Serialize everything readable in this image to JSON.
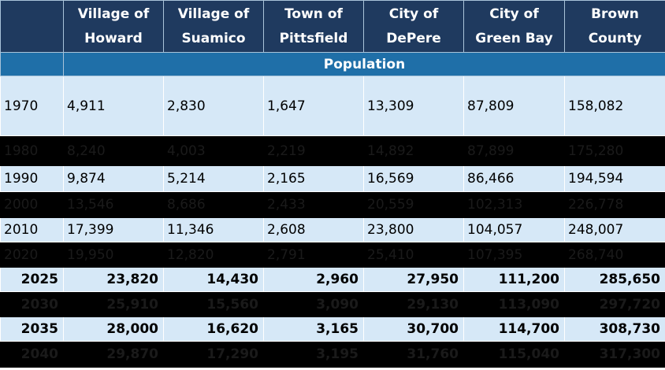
{
  "headers": [
    "",
    "Village of Howard",
    "Village of Suamico",
    "Town of Pittsfield",
    "City of DePere",
    "City of Green Bay",
    "Brown County"
  ],
  "section_label": "Population",
  "rows": [
    {
      "year": "1970",
      "values": [
        "4,911",
        "2,830",
        "1,647",
        "13,309",
        "87,809",
        "158,082"
      ]
    },
    {
      "year": "1980",
      "values": [
        "8,240",
        "4,003",
        "2,219",
        "14,892",
        "87,899",
        "175,280"
      ]
    },
    {
      "year": "1990",
      "values": [
        "9,874",
        "5,214",
        "2,165",
        "16,569",
        "86,466",
        "194,594"
      ]
    },
    {
      "year": "2000",
      "values": [
        "13,546",
        "8,686",
        "2,433",
        "20,559",
        "102,313",
        "226,778"
      ]
    },
    {
      "year": "2010",
      "values": [
        "17,399",
        "11,346",
        "2,608",
        "23,800",
        "104,057",
        "248,007"
      ]
    },
    {
      "year": "2020",
      "values": [
        "19,950",
        "12,820",
        "2,791",
        "25,410",
        "107,395",
        "268,740"
      ]
    },
    {
      "year": "2025",
      "values": [
        "23,820",
        "14,430",
        "2,960",
        "27,950",
        "111,200",
        "285,650"
      ]
    },
    {
      "year": "2030",
      "values": [
        "25,910",
        "15,560",
        "3,090",
        "29,130",
        "113,090",
        "297,720"
      ]
    },
    {
      "year": "2035",
      "values": [
        "28,000",
        "16,620",
        "3,165",
        "30,700",
        "114,700",
        "308,730"
      ]
    },
    {
      "year": "2040",
      "values": [
        "29,870",
        "17,290",
        "3,195",
        "31,760",
        "115,040",
        "317,300"
      ]
    }
  ]
}
